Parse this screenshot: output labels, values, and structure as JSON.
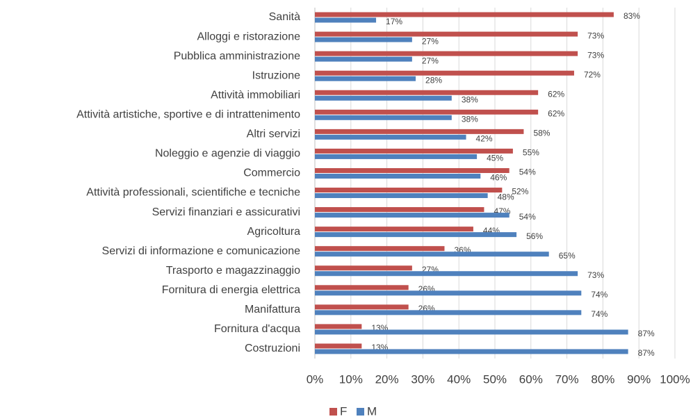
{
  "chart_data": {
    "type": "hbar",
    "categories": [
      "Sanità",
      "Alloggi e ristorazione",
      "Pubblica amministrazione",
      "Istruzione",
      "Attività immobiliari",
      "Attività artistiche, sportive e di intrattenimento",
      "Altri servizi",
      "Noleggio e agenzie di viaggio",
      "Commercio",
      "Attività professionali, scientifiche e tecniche",
      "Servizi finanziari e assicurativi",
      "Agricoltura",
      "Servizi di informazione e comunicazione",
      "Trasporto e magazzinaggio",
      "Fornitura di energia elettrica",
      "Manifattura",
      "Fornitura d'acqua",
      "Costruzioni"
    ],
    "series": [
      {
        "name": "F",
        "color": "#c0504d",
        "values": [
          83,
          73,
          73,
          72,
          62,
          62,
          58,
          55,
          54,
          52,
          47,
          44,
          36,
          27,
          26,
          26,
          13,
          13
        ],
        "value_labels": [
          "83%",
          "73%",
          "73%",
          "72%",
          "62%",
          "62%",
          "58%",
          "55%",
          "54%",
          "52%",
          "47%",
          "44%",
          "36%",
          "27%",
          "26%",
          "26%",
          "13%",
          "13%"
        ]
      },
      {
        "name": "M",
        "color": "#4f81bd",
        "values": [
          17,
          27,
          27,
          28,
          38,
          38,
          42,
          45,
          46,
          48,
          54,
          56,
          65,
          73,
          74,
          74,
          87,
          87
        ],
        "value_labels": [
          "17%",
          "27%",
          "27%",
          "28%",
          "38%",
          "38%",
          "42%",
          "45%",
          "46%",
          "48%",
          "54%",
          "56%",
          "65%",
          "73%",
          "74%",
          "74%",
          "87%",
          "87%"
        ]
      }
    ],
    "xlim": [
      0,
      100
    ],
    "xticks": [
      {
        "value": 0,
        "label": "0%"
      },
      {
        "value": 10,
        "label": "10%"
      },
      {
        "value": 20,
        "label": "20%"
      },
      {
        "value": 30,
        "label": "30%"
      },
      {
        "value": 40,
        "label": "40%"
      },
      {
        "value": 50,
        "label": "50%"
      },
      {
        "value": 60,
        "label": "60%"
      },
      {
        "value": 70,
        "label": "70%"
      },
      {
        "value": 80,
        "label": "80%"
      },
      {
        "value": 90,
        "label": "90%"
      },
      {
        "value": 100,
        "label": "100%"
      }
    ],
    "grid": true,
    "legend": "bottom"
  }
}
